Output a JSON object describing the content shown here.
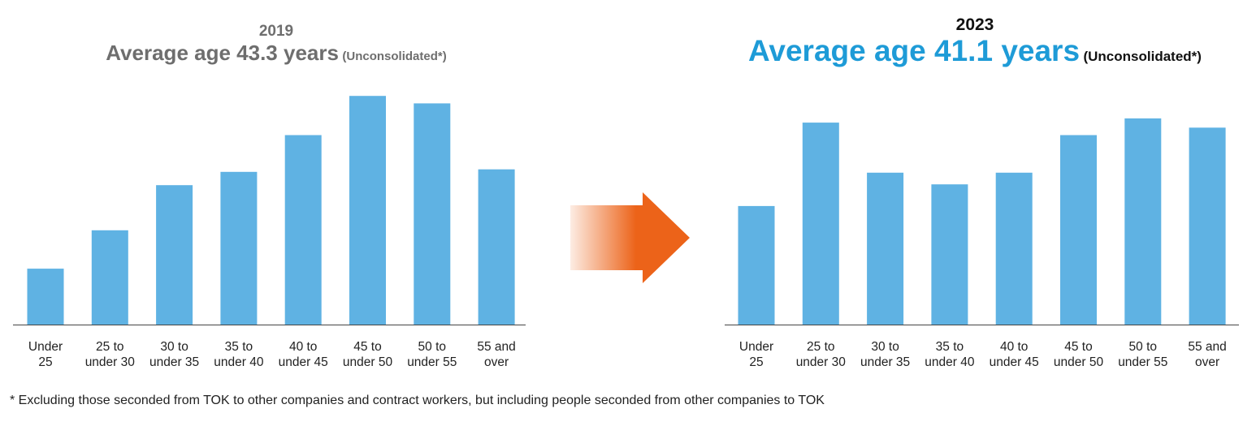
{
  "charts": [
    {
      "year": "2019",
      "avg_text": "Average age 43.3 years",
      "note": "(Unconsolidated*)"
    },
    {
      "year": "2023",
      "avg_text": "Average age 41.1 years",
      "note": "(Unconsolidated*)"
    }
  ],
  "footnote": "* Excluding those seconded from TOK to other companies and contract workers, but including people seconded from other companies to TOK",
  "colors": {
    "bar": "#5fb2e3",
    "title_2023": "#1e9bd7",
    "title_2019": "#6e6e6e",
    "arrow": "#ec6319"
  },
  "arrow_icon": "right-arrow-icon",
  "chart_data": [
    {
      "type": "bar",
      "title": "2019",
      "categories": [
        [
          "Under",
          "25"
        ],
        [
          "25 to",
          "under 30"
        ],
        [
          "30 to",
          "under 35"
        ],
        [
          "35 to",
          "under 40"
        ],
        [
          "40 to",
          "under 45"
        ],
        [
          "45 to",
          "under 50"
        ],
        [
          "50 to",
          "under 55"
        ],
        [
          "55 and",
          "over"
        ]
      ],
      "values": [
        67,
        113,
        167,
        183,
        227,
        274,
        265,
        186
      ],
      "ylim": [
        0,
        280
      ],
      "y_axis_shown": false,
      "grid": false
    },
    {
      "type": "bar",
      "title": "2023",
      "categories": [
        [
          "Under",
          "25"
        ],
        [
          "25 to",
          "under 30"
        ],
        [
          "30 to",
          "under 35"
        ],
        [
          "35 to",
          "under 40"
        ],
        [
          "40 to",
          "under 45"
        ],
        [
          "45 to",
          "under 50"
        ],
        [
          "50 to",
          "under 55"
        ],
        [
          "55 and",
          "over"
        ]
      ],
      "values": [
        142,
        242,
        182,
        168,
        182,
        227,
        247,
        236
      ],
      "ylim": [
        0,
        280
      ],
      "y_axis_shown": false,
      "grid": false
    }
  ]
}
